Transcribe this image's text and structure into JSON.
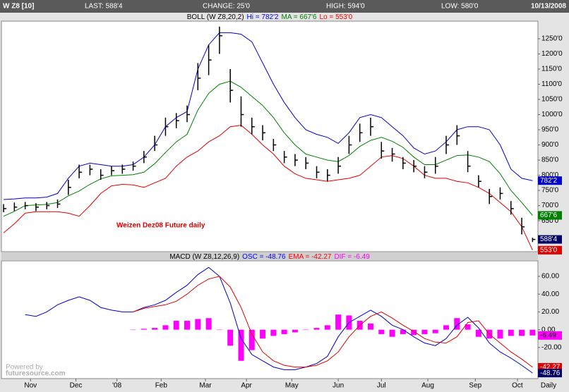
{
  "chart_data": {
    "type": "ohlc",
    "header": {
      "symbol": "W Z8 [10]",
      "last": "LAST: 588'4",
      "change": "CHANGE: 25'0",
      "high": "HIGH: 594'0",
      "low": "LOW: 580'0",
      "date": "10/13/2008"
    },
    "annotation": "Weizen Dez08 Future daily",
    "watermark": [
      "Powered by",
      "futuresource.com"
    ],
    "x_unit": "Daily",
    "x": [
      0,
      1,
      2,
      3,
      4,
      5,
      6,
      7,
      8,
      9,
      10,
      11,
      12,
      13,
      14,
      15,
      16,
      17,
      18,
      19,
      20,
      21,
      22,
      23,
      24,
      25,
      26,
      27,
      28,
      29,
      30,
      31,
      32,
      33,
      34,
      35,
      36,
      37,
      38,
      39,
      40,
      41,
      42,
      43,
      44,
      45,
      46,
      47,
      48,
      49
    ],
    "xlim": [
      -0.2,
      49.5
    ],
    "xticks": [
      {
        "value": 2.5,
        "label": "Nov"
      },
      {
        "value": 6.7,
        "label": "Dec"
      },
      {
        "value": 10.5,
        "label": "'08"
      },
      {
        "value": 14.6,
        "label": "Feb"
      },
      {
        "value": 18.7,
        "label": "Mar"
      },
      {
        "value": 22.5,
        "label": "Apr"
      },
      {
        "value": 26.7,
        "label": "May"
      },
      {
        "value": 31,
        "label": "Jun"
      },
      {
        "value": 35,
        "label": "Jul"
      },
      {
        "value": 39.3,
        "label": "Aug"
      },
      {
        "value": 43.7,
        "label": "Sep"
      },
      {
        "value": 47.6,
        "label": "Oct"
      }
    ],
    "price": {
      "legend": [
        {
          "text": "BOLL (W Z8,20,2)",
          "color": "#000000"
        },
        {
          "text": "Hi = 782'2",
          "color": "#0000ff"
        },
        {
          "text": "MA = 667'6",
          "color": "#008000"
        },
        {
          "text": "Lo = 553'0",
          "color": "#ff0000"
        }
      ],
      "ylim": [
        548,
        1308
      ],
      "yticks": [
        {
          "value": 650,
          "label": "650'0"
        },
        {
          "value": 700,
          "label": "700'0"
        },
        {
          "value": 750,
          "label": "750'0"
        },
        {
          "value": 800,
          "label": "800'0"
        },
        {
          "value": 850,
          "label": "850'0"
        },
        {
          "value": 900,
          "label": "900'0"
        },
        {
          "value": 950,
          "label": "950'0"
        },
        {
          "value": 1000,
          "label": "1000'0"
        },
        {
          "value": 1050,
          "label": "1050'0"
        },
        {
          "value": 1100,
          "label": "1100'0"
        },
        {
          "value": 1150,
          "label": "1150'0"
        },
        {
          "value": 1200,
          "label": "1200'0"
        },
        {
          "value": 1250,
          "label": "1250'0"
        }
      ],
      "color": "#000000",
      "high": [
        705,
        710,
        712,
        708,
        712,
        720,
        785,
        835,
        835,
        820,
        830,
        835,
        845,
        880,
        930,
        990,
        1005,
        1030,
        1170,
        1230,
        1290,
        1150,
        1060,
        990,
        965,
        920,
        880,
        870,
        860,
        830,
        820,
        860,
        930,
        970,
        990,
        910,
        890,
        860,
        850,
        830,
        860,
        930,
        965,
        880,
        800,
        755,
        760,
        715,
        660,
        594
      ],
      "low": [
        678,
        682,
        688,
        682,
        688,
        692,
        735,
        790,
        800,
        785,
        800,
        805,
        815,
        840,
        880,
        930,
        955,
        975,
        1080,
        1130,
        1200,
        1040,
        960,
        935,
        915,
        880,
        840,
        830,
        820,
        790,
        780,
        805,
        870,
        910,
        930,
        855,
        845,
        820,
        810,
        790,
        805,
        870,
        900,
        810,
        760,
        705,
        720,
        670,
        605,
        580
      ],
      "close": [
        690,
        695,
        700,
        695,
        700,
        705,
        760,
        810,
        820,
        800,
        815,
        820,
        830,
        860,
        900,
        960,
        980,
        1000,
        1120,
        1180,
        1260,
        1080,
        1000,
        960,
        940,
        900,
        860,
        850,
        840,
        810,
        800,
        830,
        900,
        940,
        960,
        880,
        870,
        840,
        830,
        810,
        830,
        900,
        930,
        830,
        780,
        730,
        740,
        690,
        630,
        588.5
      ],
      "bands": [
        {
          "color": "#0000cc",
          "values": [
            720,
            722,
            725,
            725,
            728,
            740,
            790,
            830,
            840,
            835,
            830,
            830,
            835,
            860,
            900,
            960,
            990,
            1010,
            1150,
            1230,
            1270,
            1270,
            1265,
            1240,
            1170,
            1100,
            1040,
            990,
            950,
            935,
            925,
            905,
            940,
            990,
            1000,
            990,
            960,
            930,
            890,
            870,
            880,
            910,
            950,
            960,
            960,
            950,
            900,
            820,
            790,
            782.25
          ]
        },
        {
          "color": "#008000",
          "values": [
            665,
            681,
            700,
            702,
            704,
            710,
            732,
            748,
            770,
            788,
            798,
            800,
            802,
            810,
            838,
            875,
            910,
            935,
            1015,
            1070,
            1100,
            1110,
            1090,
            1060,
            1030,
            990,
            940,
            900,
            870,
            860,
            850,
            845,
            865,
            895,
            915,
            925,
            912,
            892,
            860,
            835,
            835,
            850,
            865,
            867,
            860,
            845,
            805,
            750,
            710,
            667.75
          ]
        },
        {
          "color": "#e00000",
          "values": [
            610,
            640,
            675,
            680,
            680,
            680,
            675,
            665,
            700,
            740,
            765,
            770,
            768,
            760,
            775,
            790,
            830,
            860,
            880,
            910,
            930,
            960,
            965,
            935,
            900,
            870,
            830,
            805,
            790,
            785,
            780,
            785,
            790,
            800,
            830,
            860,
            865,
            855,
            830,
            800,
            790,
            790,
            780,
            775,
            760,
            740,
            710,
            680,
            630,
            553
          ]
        }
      ],
      "tags": [
        {
          "value": 782.25,
          "label": "782'2",
          "color": "#0000cc"
        },
        {
          "value": 667.75,
          "label": "667'6",
          "color": "#008000"
        },
        {
          "value": 588.5,
          "label": "588'4",
          "color": "#000066"
        },
        {
          "value": 553,
          "label": "553'0",
          "color": "#e00000"
        }
      ]
    },
    "macd": {
      "legend": [
        {
          "text": "MACD (W Z8,12,26,9)",
          "color": "#000000"
        },
        {
          "text": "OSC = -48.76",
          "color": "#0000ff"
        },
        {
          "text": "EMA = -42.27",
          "color": "#ff0000"
        },
        {
          "text": "DIF = -6.49",
          "color": "#ff00ff"
        }
      ],
      "ylim": [
        -55,
        77.4
      ],
      "yticks": [
        {
          "value": -20,
          "label": "-20.00"
        },
        {
          "value": 0,
          "label": "0.00"
        },
        {
          "value": 20,
          "label": "20.00"
        },
        {
          "value": 40,
          "label": "40.00"
        },
        {
          "value": 60,
          "label": "60.00"
        }
      ],
      "series": [
        {
          "color": "#0000cc",
          "values": [
            null,
            null,
            17,
            15,
            20,
            28,
            33,
            37,
            33,
            25,
            22,
            20,
            20,
            25,
            28,
            33,
            42,
            50,
            62,
            70,
            60,
            30,
            -10,
            -28,
            -35,
            -42,
            -45,
            -45,
            -42,
            -38,
            -30,
            -8,
            8,
            15,
            22,
            15,
            5,
            0,
            -8,
            -15,
            -18,
            -10,
            5,
            14,
            2,
            -15,
            -25,
            -32,
            -40,
            -48.76
          ]
        },
        {
          "color": "#e00000",
          "values": [
            null,
            null,
            null,
            null,
            null,
            null,
            null,
            null,
            null,
            null,
            null,
            null,
            20,
            24,
            26,
            28,
            32,
            40,
            50,
            57,
            60,
            48,
            25,
            -5,
            -25,
            -35,
            -40,
            -42,
            -42,
            -40,
            -35,
            -25,
            -8,
            5,
            15,
            20,
            13,
            5,
            -2,
            -10,
            -14,
            -15,
            -8,
            8,
            10,
            -5,
            -15,
            -25,
            -33,
            -42.27
          ]
        }
      ],
      "histogram": {
        "color": "#ff00ff",
        "values": [
          null,
          null,
          null,
          null,
          null,
          null,
          null,
          null,
          null,
          null,
          null,
          null,
          0,
          1,
          2,
          5,
          10,
          10,
          12,
          13,
          0,
          -18,
          -35,
          -23,
          -10,
          -7,
          -5,
          -3,
          0,
          2,
          5,
          17,
          16,
          10,
          7,
          -5,
          -8,
          -5,
          -6,
          -5,
          -4,
          5,
          13,
          6,
          -8,
          -10,
          -10,
          -7,
          -7,
          -6.49
        ]
      },
      "tags": [
        {
          "value": -6.49,
          "label": -6.49,
          "color": "#ff00ff"
        },
        {
          "value": -42.27,
          "label": -42.27,
          "color": "#e00000"
        },
        {
          "value": -48.76,
          "label": -48.76,
          "color": "#000066"
        }
      ]
    }
  }
}
